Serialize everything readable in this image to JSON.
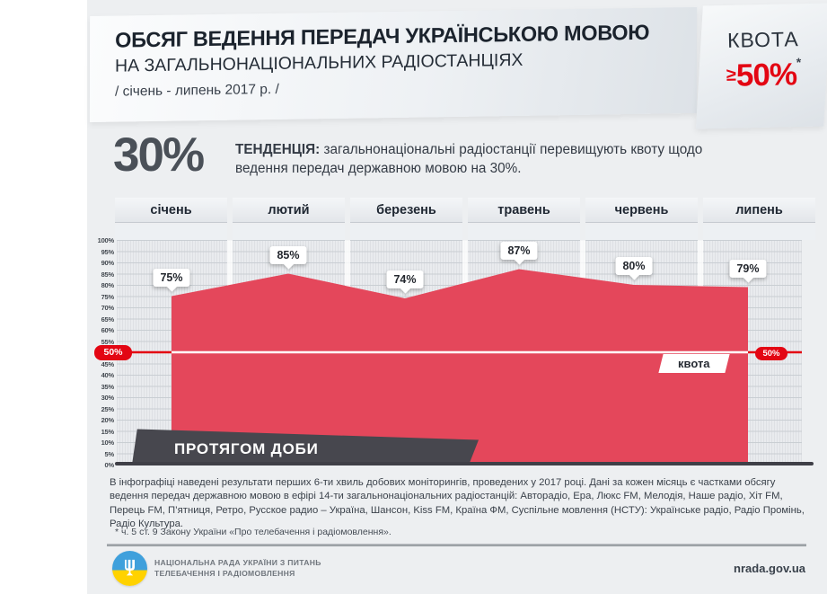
{
  "header": {
    "title": "ОБСЯГ ВЕДЕННЯ ПЕРЕДАЧ УКРАЇНСЬКОЮ МОВОЮ",
    "subtitle": "НА ЗАГАЛЬНОНАЦІОНАЛЬНИХ РАДІОСТАНЦІЯХ",
    "period": "/ січень - липень 2017 р. /",
    "quota_label": "КВОТА",
    "quota_sign": "≥",
    "quota_value": "50%",
    "quota_asterisk": "*"
  },
  "trend": {
    "big_value": "30%",
    "label": "ТЕНДЕНЦІЯ:",
    "text": " загальнонаціональні радіостанції перевищують квоту щодо ведення передач державною мовою на 30%."
  },
  "chart_data": {
    "type": "area",
    "title": "Обсяг ведення передач українською мовою на загальнонаціональних радіостанціях, січень - липень 2017",
    "categories": [
      "січень",
      "лютий",
      "березень",
      "травень",
      "червень",
      "липень"
    ],
    "values": [
      75,
      85,
      74,
      87,
      80,
      79
    ],
    "unit": "%",
    "ylim": [
      0,
      100
    ],
    "ytick_step": 5,
    "ytick_suffix": "%",
    "grid": true,
    "quota_line": 50,
    "quota_line_label": "квота",
    "quota_badge": "50%",
    "xlabel_note": "ПРОТЯГОМ ДОБИ"
  },
  "notes": {
    "methodology": "В інфографіці наведені результати перших 6-ти хвиль добових моніторингів, проведених у 2017 році. Дані за кожен місяць є частками обсягу ведення передач державною мовою в ефірі 14-ти загальнонаціональних радіостанцій: Авторадіо, Ера, Люкс FM, Мелодія, Наше радіо, Хіт FM, Перець FM, П’ятниця, Ретро, Русское радио – Україна, Шансон, Kiss FM, Країна ФМ, Суспільне мовлення (НСТУ): Українське радіо, Радіо Промінь, Радіо Культура.",
    "footnote": "* ч. 5 ст. 9 Закону України «Про телебачення і радіомовлення»."
  },
  "footer": {
    "org_line1": "НАЦІОНАЛЬНА РАДА УКРАЇНИ З ПИТАНЬ",
    "org_line2": "ТЕЛЕБАЧЕННЯ І РАДІОМОВЛЕННЯ",
    "site": "nrada.gov.ua"
  },
  "colors": {
    "area_red": "#e4475b",
    "quota_red": "#e30613",
    "dark_banner": "#47474e"
  }
}
